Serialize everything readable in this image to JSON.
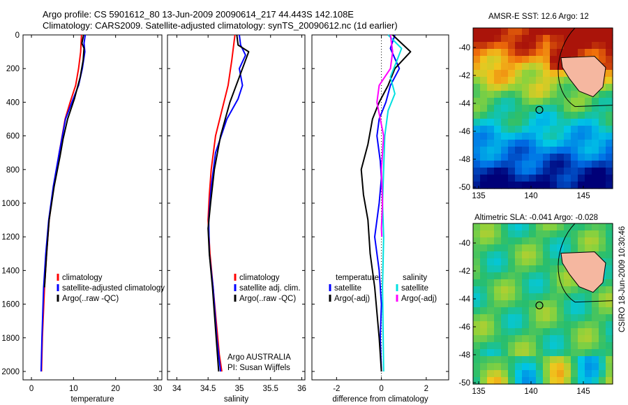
{
  "header": {
    "line1": "Argo profile: CS 5901612_80 13-Jun-2009 20090614_217 44.443S 142.108E",
    "line2": "Climatology: CARS2009. Satellite-adjusted climatology: synTS_20090612.nc (1d earlier)"
  },
  "side_label": "CSIRO 18-Jun-2009 10:30:46",
  "colors": {
    "climatology": "#ff0000",
    "satellite": "#0000ff",
    "argo": "#000000",
    "argo_salinity_diff": "#ff00ff",
    "satellite_salinity_diff": "#00e0e0"
  },
  "chart_data": [
    {
      "id": "temperature",
      "type": "line",
      "xlabel": "temperature",
      "ylabel": "",
      "xlim": [
        -2,
        31
      ],
      "ylim": [
        2050,
        0
      ],
      "xticks": [
        0,
        10,
        20,
        30
      ],
      "yticks": [
        0,
        200,
        400,
        600,
        800,
        1000,
        1200,
        1400,
        1600,
        1800,
        2000
      ],
      "series": [
        {
          "name": "climatology",
          "color": "#ff0000",
          "width": 2,
          "x": [
            11.9,
            11.7,
            11.2,
            10.5,
            9.2,
            8.0,
            6.6,
            5.3,
            4.2,
            3.6,
            3.1,
            2.6,
            2.4
          ],
          "y": [
            0,
            100,
            200,
            300,
            400,
            500,
            700,
            900,
            1100,
            1300,
            1500,
            1800,
            2000
          ]
        },
        {
          "name": "satellite-adjusted climatology",
          "color": "#0000ff",
          "width": 2,
          "x": [
            12.8,
            12.5,
            12.7,
            12.1,
            11.2,
            9.6,
            8.1,
            6.6,
            5.2,
            4.1,
            3.4,
            2.9,
            2.5,
            2.3
          ],
          "y": [
            0,
            50,
            100,
            200,
            300,
            400,
            500,
            700,
            900,
            1100,
            1300,
            1500,
            1800,
            2000
          ]
        },
        {
          "name": "Argo(..raw -QC)",
          "color": "#000000",
          "width": 2,
          "x": [
            12.4,
            12.0,
            12.5,
            12.3,
            11.6,
            10.2,
            8.6,
            7.5,
            6.8,
            5.4,
            4.2,
            3.6,
            3.1
          ],
          "y": [
            0,
            50,
            80,
            150,
            250,
            380,
            500,
            620,
            720,
            900,
            1100,
            1300,
            1500
          ]
        }
      ],
      "legend": [
        "climatology",
        "satellite-adjusted climatology",
        "Argo(..raw -QC)"
      ]
    },
    {
      "id": "salinity",
      "type": "line",
      "xlabel": "salinity",
      "ylabel": "",
      "xlim": [
        33.85,
        36.05
      ],
      "ylim": [
        2050,
        0
      ],
      "xticks": [
        34,
        34.5,
        35,
        35.5,
        36
      ],
      "yticks": [
        0,
        200,
        400,
        600,
        800,
        1000,
        1200,
        1400,
        1600,
        1800,
        2000
      ],
      "series": [
        {
          "name": "climatology",
          "color": "#ff0000",
          "width": 2,
          "x": [
            34.93,
            34.88,
            34.82,
            34.72,
            34.62,
            34.55,
            34.52,
            34.5,
            34.53,
            34.58,
            34.63,
            34.68,
            34.72
          ],
          "y": [
            0,
            150,
            300,
            450,
            600,
            800,
            950,
            1100,
            1300,
            1500,
            1700,
            1900,
            2000
          ]
        },
        {
          "name": "satellite adj. clim.",
          "color": "#0000ff",
          "width": 2,
          "x": [
            35.0,
            35.02,
            35.1,
            35.0,
            35.05,
            34.98,
            34.8,
            34.62,
            34.55,
            34.51,
            34.52,
            34.58,
            34.64,
            34.7
          ],
          "y": [
            0,
            60,
            120,
            200,
            300,
            380,
            500,
            700,
            900,
            1100,
            1300,
            1500,
            1800,
            2000
          ]
        },
        {
          "name": "Argo(..raw -QC)",
          "color": "#000000",
          "width": 2,
          "x": [
            34.96,
            34.98,
            35.15,
            35.0,
            34.85,
            34.7,
            34.6,
            34.54,
            34.5,
            34.52,
            34.57,
            34.63,
            34.67
          ],
          "y": [
            0,
            60,
            100,
            250,
            400,
            600,
            800,
            1000,
            1150,
            1300,
            1500,
            1800,
            2000
          ]
        }
      ],
      "legend": [
        "climatology",
        "satellite adj. clim.",
        "Argo(..raw -QC)"
      ],
      "annotation": [
        "Argo AUSTRALIA",
        "PI: Susan Wijffels"
      ]
    },
    {
      "id": "difference",
      "type": "line",
      "xlabel": "difference from climatology",
      "ylabel": "",
      "xlim": [
        -3.1,
        3.0
      ],
      "ylim": [
        2050,
        0
      ],
      "xticks": [
        -2,
        0,
        2
      ],
      "yticks": [
        0,
        200,
        400,
        600,
        800,
        1000,
        1200,
        1400,
        1600,
        1800,
        2000
      ],
      "zero_line": true,
      "series": [
        {
          "name": "temperature satellite",
          "color": "#0000ff",
          "width": 2,
          "x": [
            0.6,
            0.4,
            0.8,
            0.4,
            0.2,
            -0.1,
            -0.2,
            -0.05,
            0.0,
            -0.1,
            -0.2,
            -0.3,
            -0.1,
            0.0,
            -0.05,
            0.0
          ],
          "y": [
            0,
            80,
            200,
            300,
            400,
            500,
            600,
            750,
            850,
            1000,
            1100,
            1200,
            1400,
            1600,
            1800,
            2000
          ]
        },
        {
          "name": "temperature Argo(-adj)",
          "color": "#000000",
          "width": 2,
          "x": [
            0.5,
            1.3,
            0.6,
            0.3,
            -0.1,
            -0.4,
            -0.6,
            -0.9,
            -0.8,
            -0.6,
            -0.5,
            -0.3,
            -0.1,
            0.0
          ],
          "y": [
            0,
            100,
            200,
            300,
            400,
            500,
            650,
            800,
            950,
            1100,
            1300,
            1500,
            1800,
            2000
          ]
        },
        {
          "name": "salinity satellite",
          "color": "#00e0e0",
          "width": 2,
          "x": [
            0.3,
            0.9,
            0.7,
            0.4,
            0.6,
            0.3,
            0.15,
            0.1,
            0.05,
            0.1,
            0.05,
            0.1
          ],
          "y": [
            0,
            80,
            150,
            250,
            350,
            450,
            600,
            800,
            1000,
            1200,
            1500,
            2000
          ]
        },
        {
          "name": "salinity Argo(-adj)",
          "color": "#ff00ff",
          "width": 2,
          "x": [
            0.4,
            0.5,
            0.4,
            -0.1,
            -0.2,
            0.1,
            0.0,
            0.05,
            0.0,
            0.02
          ],
          "y": [
            0,
            100,
            200,
            300,
            400,
            600,
            800,
            1000,
            1150,
            1200
          ]
        }
      ],
      "legend_left": {
        "title": "temperature",
        "items": [
          "satellite",
          "Argo(-adj)"
        ]
      },
      "legend_right": {
        "title": "salinity",
        "items": [
          "satellite",
          "Argo(-adj)"
        ]
      }
    }
  ],
  "maps": [
    {
      "id": "sst",
      "title": "AMSR-E SST: 12.6  Argo: 12",
      "xticks": [
        "135",
        "140",
        "145"
      ],
      "yticks": [
        "-40",
        "-42",
        "-44",
        "-46",
        "-48",
        "-50"
      ],
      "colormap": "sst"
    },
    {
      "id": "sla",
      "title": "Altimetric SLA: -0.041  Argo: -0.028",
      "xticks": [
        "135",
        "140",
        "145"
      ],
      "yticks": [
        "-40",
        "-42",
        "-44",
        "-46",
        "-48",
        "-50"
      ],
      "colormap": "sla"
    }
  ]
}
